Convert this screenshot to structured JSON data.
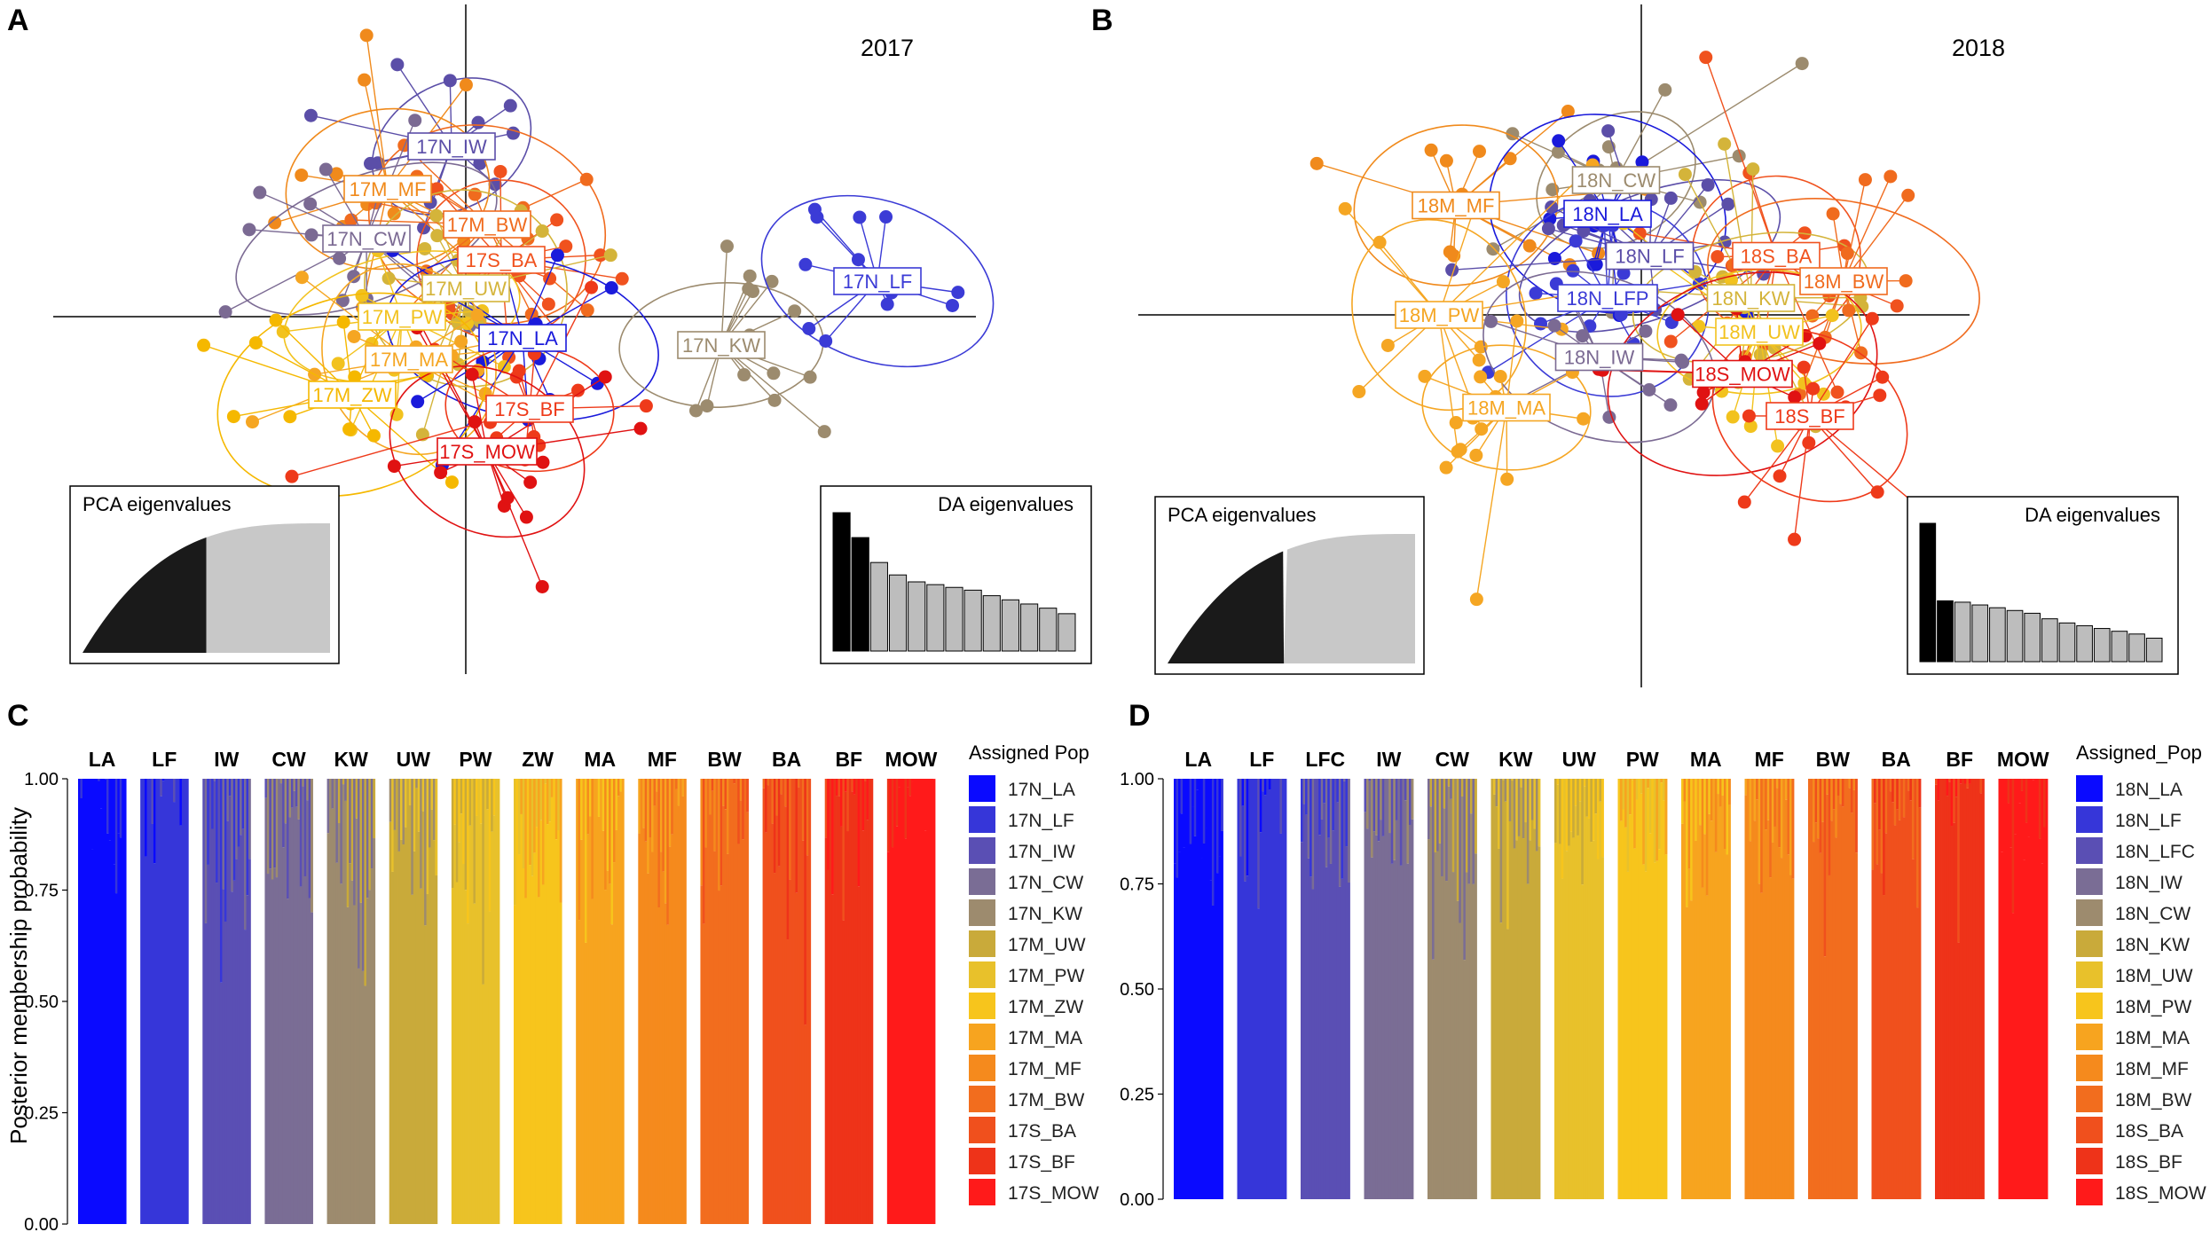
{
  "figure": {
    "panels": [
      {
        "letter": "A",
        "title": "2017"
      },
      {
        "letter": "B",
        "title": "2018"
      },
      {
        "letter": "C"
      },
      {
        "letter": "D"
      }
    ]
  },
  "chart_data": [
    {
      "panel": "A",
      "type": "scatter",
      "title": "2017",
      "xlabel": "",
      "ylabel": "",
      "groups": [
        {
          "name": "17N_IW",
          "color": "#5b4ea8",
          "centroid": [
            -0.2,
            2.4
          ]
        },
        {
          "name": "17M_MF",
          "color": "#f08a1c",
          "centroid": [
            -1.1,
            1.8
          ]
        },
        {
          "name": "17M_BW",
          "color": "#f06b1e",
          "centroid": [
            0.3,
            1.3
          ]
        },
        {
          "name": "17N_CW",
          "color": "#7b6a93",
          "centroid": [
            -1.4,
            1.1
          ]
        },
        {
          "name": "17S_BA",
          "color": "#f0521e",
          "centroid": [
            0.5,
            0.8
          ]
        },
        {
          "name": "17M_UW",
          "color": "#d4b43a",
          "centroid": [
            0.0,
            0.4
          ]
        },
        {
          "name": "17M_PW",
          "color": "#f2c21e",
          "centroid": [
            -0.9,
            0.0
          ]
        },
        {
          "name": "17N_LA",
          "color": "#1a1adb",
          "centroid": [
            0.8,
            -0.3
          ]
        },
        {
          "name": "17M_MA",
          "color": "#f5a623",
          "centroid": [
            -0.8,
            -0.6
          ]
        },
        {
          "name": "17N_KW",
          "color": "#9c8b6e",
          "centroid": [
            3.6,
            -0.4
          ]
        },
        {
          "name": "17N_LF",
          "color": "#3b3bd6",
          "centroid": [
            5.8,
            0.5
          ]
        },
        {
          "name": "17M_ZW",
          "color": "#f5b800",
          "centroid": [
            -1.6,
            -1.1
          ]
        },
        {
          "name": "17S_BF",
          "color": "#ee3a1a",
          "centroid": [
            0.9,
            -1.3
          ]
        },
        {
          "name": "17S_MOW",
          "color": "#e01212",
          "centroid": [
            0.3,
            -1.9
          ]
        }
      ],
      "insets": [
        {
          "title": "PCA eigenvalues",
          "type": "area",
          "retained_fraction": 0.5
        },
        {
          "title": "DA eigenvalues",
          "type": "bar",
          "values": [
            100,
            82,
            64,
            55,
            50,
            48,
            46,
            44,
            40,
            37,
            34,
            31,
            27
          ],
          "retained": 2
        }
      ]
    },
    {
      "panel": "B",
      "type": "scatter",
      "title": "2018",
      "xlabel": "",
      "ylabel": "",
      "groups": [
        {
          "name": "18N_CW",
          "color": "#9c8b6e",
          "centroid": [
            -0.3,
            1.6
          ]
        },
        {
          "name": "18M_MF",
          "color": "#f08a1c",
          "centroid": [
            -2.2,
            1.3
          ]
        },
        {
          "name": "18N_LA",
          "color": "#1a1adb",
          "centroid": [
            -0.4,
            1.2
          ]
        },
        {
          "name": "18N_LF",
          "color": "#5b4ea8",
          "centroid": [
            0.1,
            0.7
          ]
        },
        {
          "name": "18S_BA",
          "color": "#f0521e",
          "centroid": [
            1.6,
            0.7
          ]
        },
        {
          "name": "18N_LFP",
          "color": "#3b3bd6",
          "centroid": [
            -0.4,
            0.2
          ]
        },
        {
          "name": "18N_KW",
          "color": "#d4b43a",
          "centroid": [
            1.3,
            0.2
          ]
        },
        {
          "name": "18M_BW",
          "color": "#f06b1e",
          "centroid": [
            2.4,
            0.4
          ]
        },
        {
          "name": "18M_PW",
          "color": "#f5a623",
          "centroid": [
            -2.4,
            0.0
          ]
        },
        {
          "name": "18M_UW",
          "color": "#f2c21e",
          "centroid": [
            1.4,
            -0.2
          ]
        },
        {
          "name": "18N_IW",
          "color": "#7b6a93",
          "centroid": [
            -0.5,
            -0.5
          ]
        },
        {
          "name": "18S_MOW",
          "color": "#e01212",
          "centroid": [
            1.2,
            -0.7
          ]
        },
        {
          "name": "18M_MA",
          "color": "#f5a623",
          "centroid": [
            -1.6,
            -1.1
          ]
        },
        {
          "name": "18S_BF",
          "color": "#ee3a1a",
          "centroid": [
            2.0,
            -1.2
          ]
        }
      ],
      "insets": [
        {
          "title": "PCA eigenvalues",
          "type": "area",
          "retained_fraction": 0.47
        },
        {
          "title": "DA eigenvalues",
          "type": "bar",
          "values": [
            100,
            44,
            43,
            41,
            39,
            37,
            35,
            31,
            28,
            26,
            24,
            22,
            20,
            17
          ],
          "retained": 2
        }
      ]
    },
    {
      "panel": "C",
      "type": "bar",
      "stacked": true,
      "ylabel": "Posterior membership probability",
      "ylim": [
        0,
        1
      ],
      "yticks": [
        "0.00",
        "0.25",
        "0.50",
        "0.75",
        "1.00"
      ],
      "categories": [
        "LA",
        "LF",
        "IW",
        "CW",
        "KW",
        "UW",
        "PW",
        "ZW",
        "MA",
        "MF",
        "BW",
        "BA",
        "BF",
        "MOW"
      ],
      "legend_title": "Assigned Pop",
      "legend": [
        {
          "name": "17N_LA",
          "color": "#0a0aff"
        },
        {
          "name": "17N_LF",
          "color": "#3636d9"
        },
        {
          "name": "17N_IW",
          "color": "#5a4fb4"
        },
        {
          "name": "17N_CW",
          "color": "#7a6d95"
        },
        {
          "name": "17N_KW",
          "color": "#9d8b6e"
        },
        {
          "name": "17M_UW",
          "color": "#c9aa3a"
        },
        {
          "name": "17M_PW",
          "color": "#e8c12b"
        },
        {
          "name": "17M_ZW",
          "color": "#f7c51c"
        },
        {
          "name": "17M_MA",
          "color": "#f7a41f"
        },
        {
          "name": "17M_MF",
          "color": "#f58a1d"
        },
        {
          "name": "17M_BW",
          "color": "#f26d1e"
        },
        {
          "name": "17S_BA",
          "color": "#f0501d"
        },
        {
          "name": "17S_BF",
          "color": "#ee3319"
        },
        {
          "name": "17S_MOW",
          "color": "#ff1a1a"
        }
      ],
      "dominant_assignment": [
        "17N_LA",
        "17N_LF",
        "17N_IW",
        "17N_CW",
        "17N_KW",
        "17M_UW",
        "17M_PW",
        "17M_ZW",
        "17M_MA",
        "17M_MF",
        "17M_BW",
        "17S_BA",
        "17S_BF",
        "17S_MOW"
      ],
      "mean_dominant_probability": [
        0.92,
        0.99,
        0.86,
        0.82,
        0.84,
        0.86,
        0.88,
        0.9,
        0.9,
        0.92,
        0.92,
        0.93,
        0.96,
        0.95
      ]
    },
    {
      "panel": "D",
      "type": "bar",
      "stacked": true,
      "ylabel": "",
      "ylim": [
        0,
        1
      ],
      "yticks": [
        "0.00",
        "0.25",
        "0.50",
        "0.75",
        "1.00"
      ],
      "categories": [
        "LA",
        "LF",
        "LFC",
        "IW",
        "CW",
        "KW",
        "UW",
        "PW",
        "MA",
        "MF",
        "BW",
        "BA",
        "BF",
        "MOW"
      ],
      "legend_title": "Assigned_Pop",
      "legend": [
        {
          "name": "18N_LA",
          "color": "#0a0aff"
        },
        {
          "name": "18N_LF",
          "color": "#3636d9"
        },
        {
          "name": "18N_LFC",
          "color": "#5a4fb4"
        },
        {
          "name": "18N_IW",
          "color": "#7a6d95"
        },
        {
          "name": "18N_CW",
          "color": "#9d8b6e"
        },
        {
          "name": "18N_KW",
          "color": "#c9aa3a"
        },
        {
          "name": "18M_UW",
          "color": "#e8c12b"
        },
        {
          "name": "18M_PW",
          "color": "#f7c51c"
        },
        {
          "name": "18M_MA",
          "color": "#f7a41f"
        },
        {
          "name": "18M_MF",
          "color": "#f58a1d"
        },
        {
          "name": "18M_BW",
          "color": "#f26d1e"
        },
        {
          "name": "18S_BA",
          "color": "#f0501d"
        },
        {
          "name": "18S_BF",
          "color": "#ee3319"
        },
        {
          "name": "18S_MOW",
          "color": "#ff1a1a"
        }
      ],
      "dominant_assignment": [
        "18N_LA",
        "18N_LF",
        "18N_LFC",
        "18N_IW",
        "18N_CW",
        "18N_KW",
        "18M_UW",
        "18M_PW",
        "18M_MA",
        "18M_MF",
        "18M_BW",
        "18S_BA",
        "18S_BF",
        "18S_MOW"
      ],
      "mean_dominant_probability": [
        0.9,
        0.96,
        0.88,
        0.84,
        0.82,
        0.86,
        0.88,
        0.9,
        0.9,
        0.92,
        0.92,
        0.92,
        0.96,
        0.94
      ]
    }
  ]
}
